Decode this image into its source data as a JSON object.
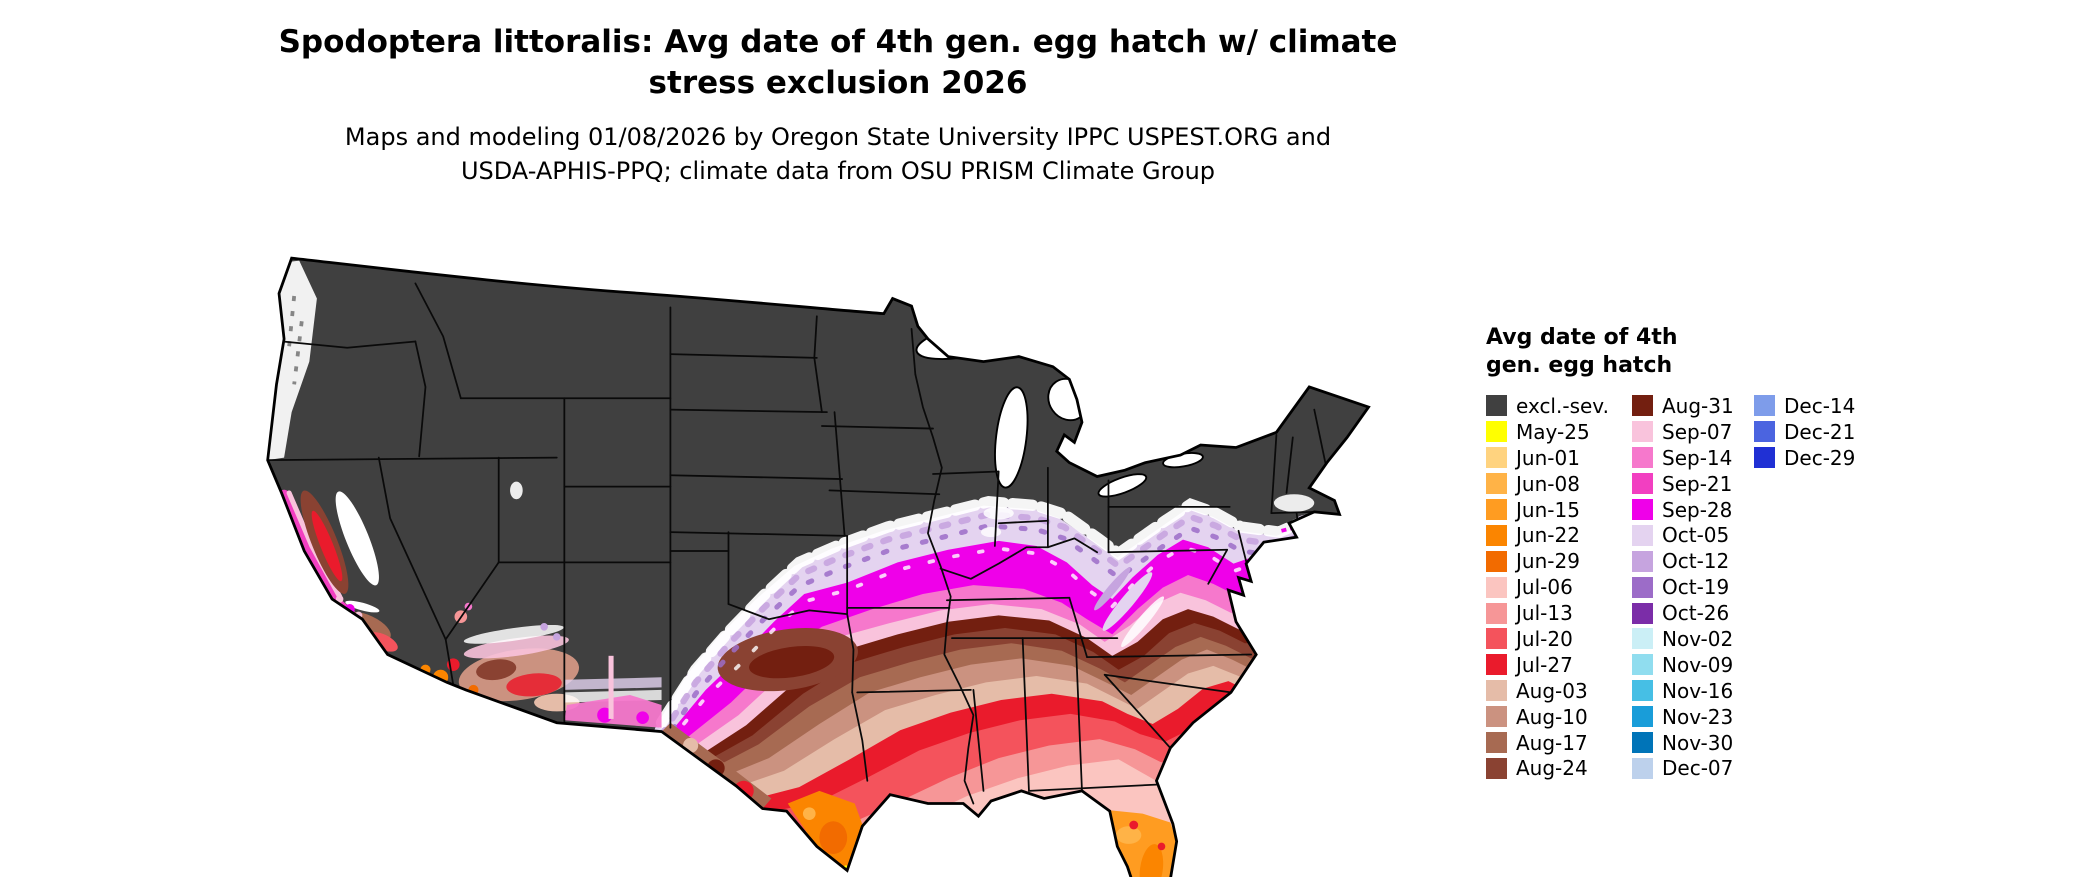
{
  "title": {
    "line1": "Spodoptera littoralis: Avg date of 4th gen. egg hatch w/ climate",
    "line2": "stress exclusion 2026"
  },
  "subtitle": {
    "line1": "Maps and modeling 01/08/2026 by Oregon State University IPPC USPEST.ORG and",
    "line2": "USDA-APHIS-PPQ; climate data from OSU PRISM Climate Group"
  },
  "legend": {
    "title_line1": "Avg date of 4th",
    "title_line2": "gen. egg hatch",
    "columns": [
      {
        "entries": [
          {
            "label": "excl.-sev.",
            "color": "#404040"
          },
          {
            "label": "May-25",
            "color": "#FFFF00"
          },
          {
            "label": "Jun-01",
            "color": "#FFD37F"
          },
          {
            "label": "Jun-08",
            "color": "#FFB347"
          },
          {
            "label": "Jun-15",
            "color": "#FF9C21"
          },
          {
            "label": "Jun-22",
            "color": "#FB8500"
          },
          {
            "label": "Jun-29",
            "color": "#F26B00"
          },
          {
            "label": "Jul-06",
            "color": "#FBC5C0"
          },
          {
            "label": "Jul-13",
            "color": "#F69697"
          },
          {
            "label": "Jul-20",
            "color": "#F4535C"
          },
          {
            "label": "Jul-27",
            "color": "#EA1B2C"
          },
          {
            "label": "Aug-03",
            "color": "#E5BCA8"
          },
          {
            "label": "Aug-10",
            "color": "#CB9280"
          },
          {
            "label": "Aug-17",
            "color": "#A76A52"
          },
          {
            "label": "Aug-24",
            "color": "#8A4232"
          }
        ]
      },
      {
        "entries": [
          {
            "label": "Aug-31",
            "color": "#731F10"
          },
          {
            "label": "Sep-07",
            "color": "#F9C3DC"
          },
          {
            "label": "Sep-14",
            "color": "#F678CC"
          },
          {
            "label": "Sep-21",
            "color": "#F23FC1"
          },
          {
            "label": "Sep-28",
            "color": "#EF00E9"
          },
          {
            "label": "Oct-05",
            "color": "#E4D3F0"
          },
          {
            "label": "Oct-12",
            "color": "#C6A4DF"
          },
          {
            "label": "Oct-19",
            "color": "#9C6CC8"
          },
          {
            "label": "Oct-26",
            "color": "#7B2DA8"
          },
          {
            "label": "Nov-02",
            "color": "#CBEFF6"
          },
          {
            "label": "Nov-09",
            "color": "#90DDEF"
          },
          {
            "label": "Nov-16",
            "color": "#46BFE5"
          },
          {
            "label": "Nov-23",
            "color": "#199DD9"
          },
          {
            "label": "Nov-30",
            "color": "#0074B8"
          },
          {
            "label": "Dec-07",
            "color": "#BDD1EC"
          }
        ]
      },
      {
        "entries": [
          {
            "label": "Dec-14",
            "color": "#7E9CEA"
          },
          {
            "label": "Dec-21",
            "color": "#4B64E0"
          },
          {
            "label": "Dec-29",
            "color": "#2030D4"
          }
        ]
      }
    ]
  }
}
